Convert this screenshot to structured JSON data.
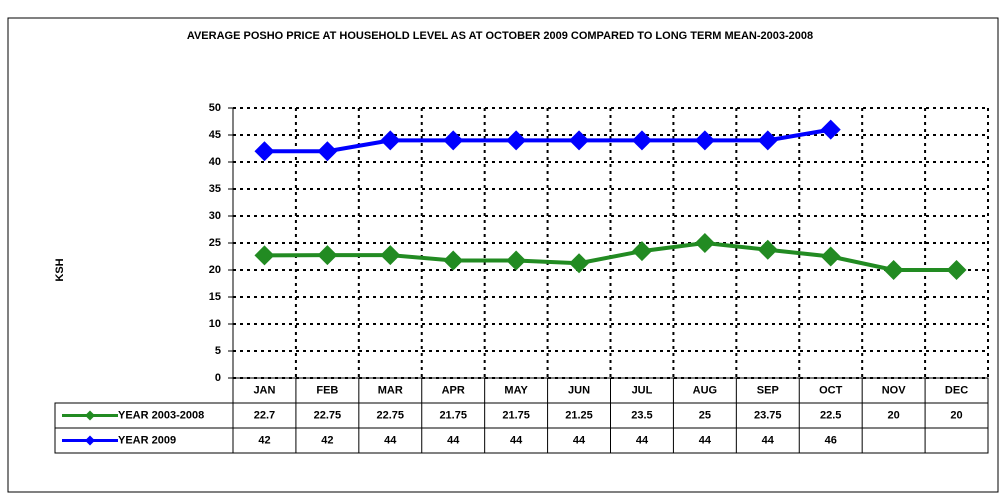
{
  "chart_data": {
    "type": "line",
    "title": "AVERAGE POSHO PRICE AT HOUSEHOLD LEVEL AS AT OCTOBER 2009 COMPARED TO LONG TERM MEAN-2003-2008",
    "y_label": "KSH",
    "categories": [
      "JAN",
      "FEB",
      "MAR",
      "APR",
      "MAY",
      "JUN",
      "JUL",
      "AUG",
      "SEP",
      "OCT",
      "NOV",
      "DEC"
    ],
    "series": [
      {
        "name": "YEAR 2003-2008",
        "color": "#228b22",
        "values": [
          22.7,
          22.75,
          22.75,
          21.75,
          21.75,
          21.25,
          23.5,
          25,
          23.75,
          22.5,
          20,
          20
        ]
      },
      {
        "name": "YEAR 2009",
        "color": "#0000ff",
        "values": [
          42,
          42,
          44,
          44,
          44,
          44,
          44,
          44,
          44,
          46,
          null,
          null
        ]
      }
    ],
    "ylim": [
      0,
      50
    ],
    "yticks": [
      0,
      5,
      10,
      15,
      20,
      25,
      30,
      35,
      40,
      45,
      50
    ],
    "grid": true
  }
}
